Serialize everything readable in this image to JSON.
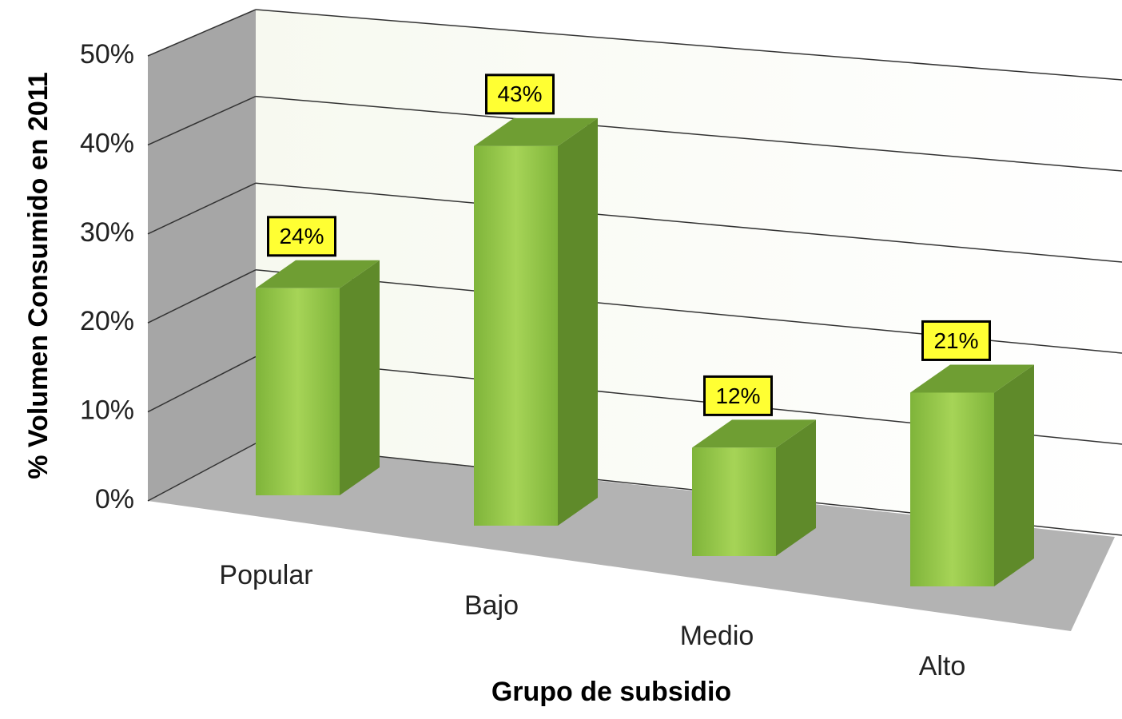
{
  "chart_data": {
    "type": "bar3d",
    "x_label": "Grupo de subsidio",
    "y_label": "% Volumen Consumido en 2011",
    "categories": [
      "Popular",
      "Bajo",
      "Medio",
      "Alto"
    ],
    "values": [
      24,
      43,
      12,
      21
    ],
    "value_labels": [
      "24%",
      "43%",
      "12%",
      "21%"
    ],
    "color": "#8dc63f",
    "ylim": [
      0,
      50
    ],
    "yticks": [
      {
        "value": 0,
        "label": "0%"
      },
      {
        "value": 10,
        "label": "10%"
      },
      {
        "value": 20,
        "label": "20%"
      },
      {
        "value": 30,
        "label": "30%"
      },
      {
        "value": 40,
        "label": "40%"
      },
      {
        "value": 50,
        "label": "50%"
      }
    ],
    "grid": true
  }
}
